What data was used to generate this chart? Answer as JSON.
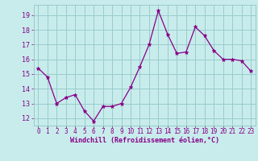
{
  "x": [
    0,
    1,
    2,
    3,
    4,
    5,
    6,
    7,
    8,
    9,
    10,
    11,
    12,
    13,
    14,
    15,
    16,
    17,
    18,
    19,
    20,
    21,
    22,
    23
  ],
  "y": [
    15.4,
    14.8,
    13.0,
    13.4,
    13.6,
    12.5,
    11.8,
    12.8,
    12.8,
    13.0,
    14.1,
    15.5,
    17.0,
    19.3,
    17.7,
    16.4,
    16.5,
    18.2,
    17.6,
    16.6,
    16.0,
    16.0,
    15.9,
    15.2
  ],
  "line_color": "#880088",
  "marker": "*",
  "marker_size": 3.5,
  "marker_color": "#880088",
  "bg_color": "#c8ecec",
  "grid_color": "#99cccc",
  "xlabel": "Windchill (Refroidissement éolien,°C)",
  "xlabel_color": "#880088",
  "tick_color": "#880088",
  "ylim": [
    11.5,
    19.7
  ],
  "xlim": [
    -0.5,
    23.5
  ],
  "yticks": [
    12,
    13,
    14,
    15,
    16,
    17,
    18,
    19
  ],
  "xticks": [
    0,
    1,
    2,
    3,
    4,
    5,
    6,
    7,
    8,
    9,
    10,
    11,
    12,
    13,
    14,
    15,
    16,
    17,
    18,
    19,
    20,
    21,
    22,
    23
  ],
  "tick_fontsize": 5.5,
  "xlabel_fontsize": 6.0,
  "xlabel_fontweight": "bold"
}
